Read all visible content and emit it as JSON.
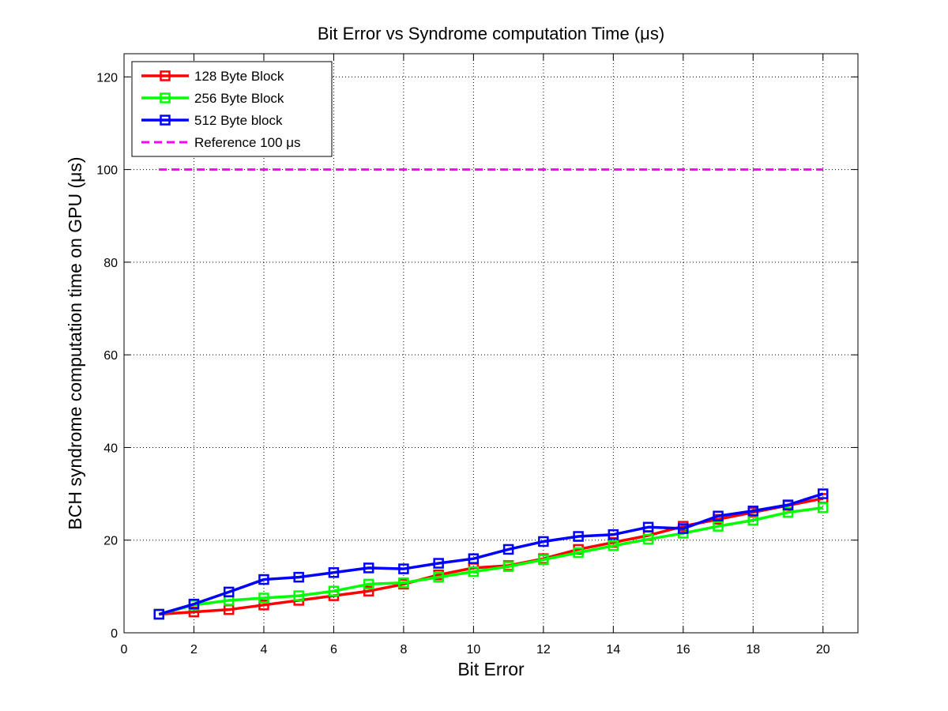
{
  "chart_data": {
    "type": "line",
    "title": "Bit Error vs Syndrome computation Time (μs)",
    "xlabel": "Bit Error",
    "ylabel": "BCH syndrome computation time on GPU (μs)",
    "xlim": [
      0,
      21
    ],
    "ylim": [
      0,
      125
    ],
    "xticks": [
      0,
      2,
      4,
      6,
      8,
      10,
      12,
      14,
      16,
      18,
      20
    ],
    "yticks": [
      0,
      20,
      40,
      60,
      80,
      100,
      120
    ],
    "grid": true,
    "legend_position": "top-left",
    "x": [
      1,
      2,
      3,
      4,
      5,
      6,
      7,
      8,
      9,
      10,
      11,
      12,
      13,
      14,
      15,
      16,
      17,
      18,
      19,
      20
    ],
    "series": [
      {
        "name": "128 Byte Block",
        "color": "#ff0000",
        "line_style": "solid",
        "marker": "square",
        "values": [
          4.0,
          4.5,
          5.0,
          6.0,
          7.0,
          8.0,
          9.0,
          10.5,
          12.5,
          14.0,
          14.5,
          16.0,
          18.0,
          19.5,
          21.0,
          23.0,
          24.5,
          26.0,
          27.5,
          29.0
        ]
      },
      {
        "name": "256 Byte Block",
        "color": "#00ff00",
        "line_style": "solid",
        "marker": "square",
        "values": [
          4.0,
          6.0,
          7.0,
          7.5,
          8.0,
          9.0,
          10.5,
          10.8,
          12.0,
          13.2,
          14.3,
          15.8,
          17.3,
          18.8,
          20.2,
          21.5,
          23.0,
          24.3,
          26.0,
          27.0
        ]
      },
      {
        "name": "512 Byte block",
        "color": "#0000ff",
        "line_style": "solid",
        "marker": "square",
        "values": [
          4.0,
          6.2,
          8.8,
          11.5,
          12.0,
          13.0,
          14.0,
          13.8,
          15.0,
          16.0,
          18.0,
          19.7,
          20.8,
          21.2,
          22.8,
          22.5,
          25.2,
          26.3,
          27.6,
          30.0
        ]
      },
      {
        "name": "Reference 100 μs",
        "color": "#ff00ff",
        "line_style": "dashed",
        "marker": "none",
        "values": [
          100,
          100,
          100,
          100,
          100,
          100,
          100,
          100,
          100,
          100,
          100,
          100,
          100,
          100,
          100,
          100,
          100,
          100,
          100,
          100
        ]
      }
    ]
  }
}
